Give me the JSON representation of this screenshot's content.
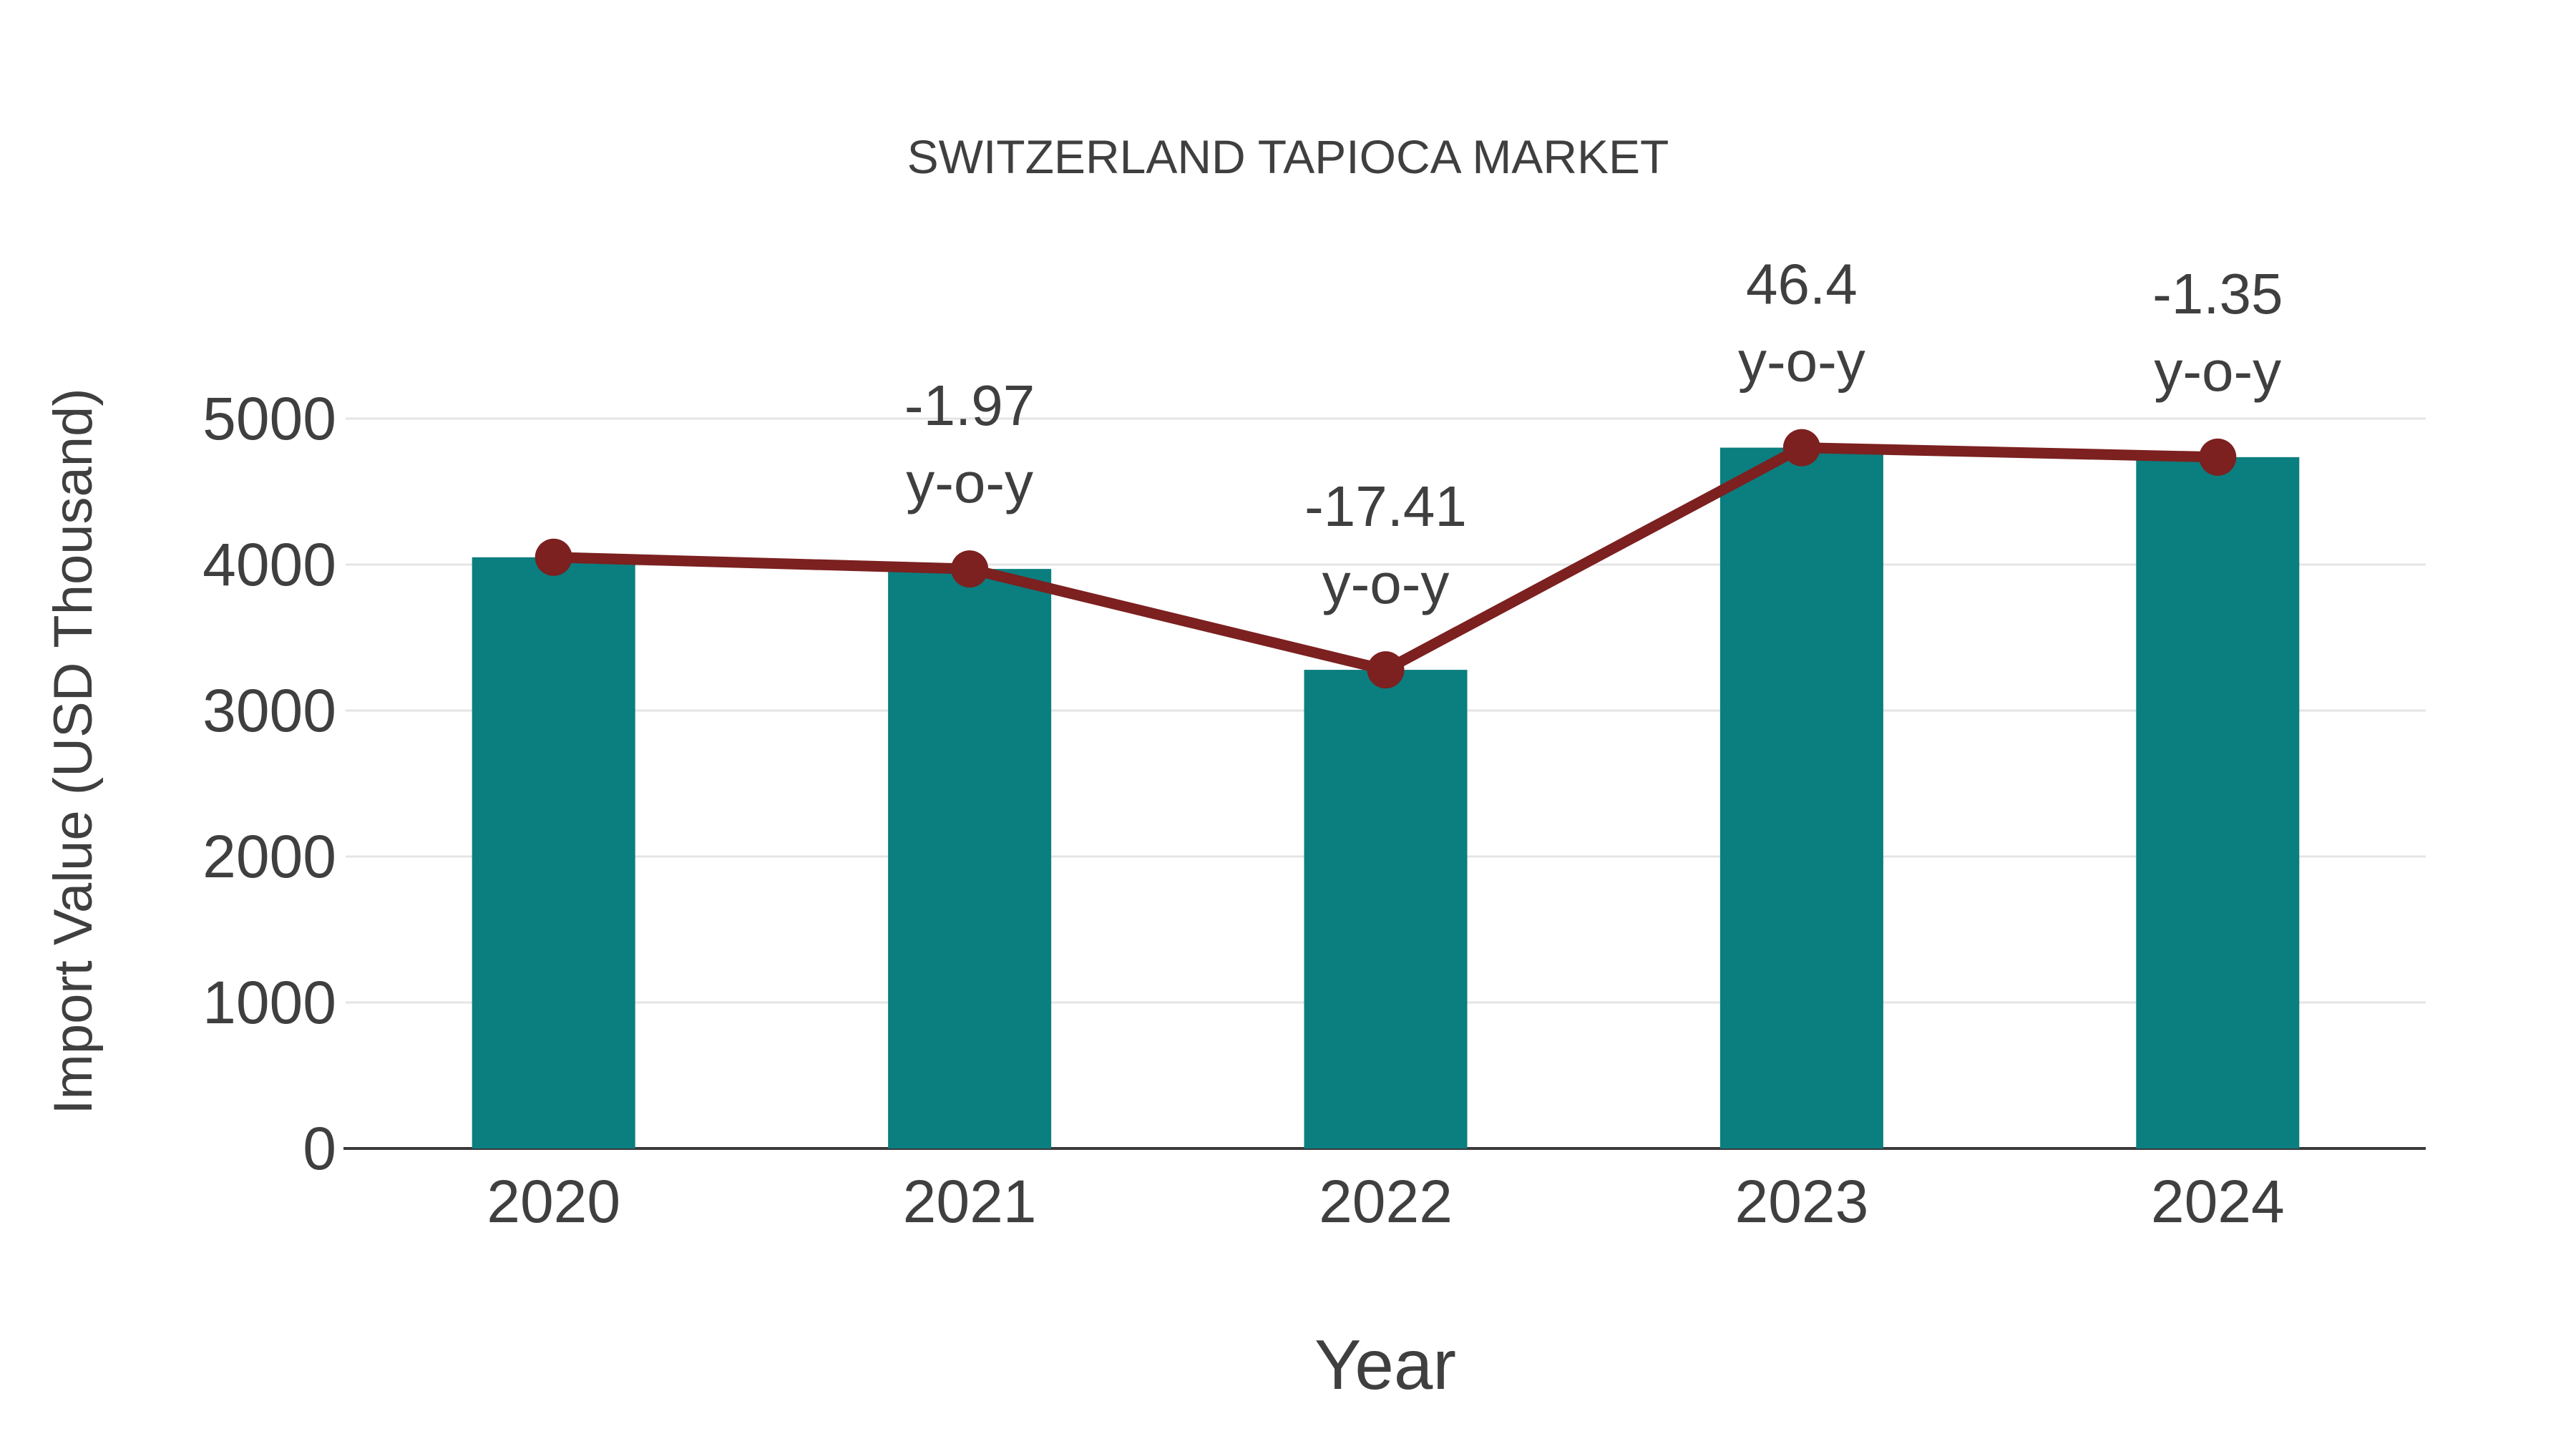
{
  "page": {
    "background": "#ffffff"
  },
  "chart_data": {
    "type": "bar",
    "subtype": "bar-with-line-overlay",
    "title": "SWITZERLAND TAPIOCA MARKET",
    "xlabel": "Year",
    "ylabel": "Import Value (USD Thousand)",
    "categories": [
      "2020",
      "2021",
      "2022",
      "2023",
      "2024"
    ],
    "series": [
      {
        "name": "import-value-bars",
        "type": "bar",
        "values": [
          4050,
          3970,
          3279,
          4801,
          4736
        ]
      },
      {
        "name": "import-value-trend-line",
        "type": "line",
        "values": [
          4050,
          3970,
          3279,
          4801,
          4736
        ]
      }
    ],
    "annotations": [
      {
        "category": "2021",
        "line1": "-1.97",
        "line2": "y-o-y"
      },
      {
        "category": "2022",
        "line1": "-17.41",
        "line2": "y-o-y"
      },
      {
        "category": "2023",
        "line1": "46.4",
        "line2": "y-o-y"
      },
      {
        "category": "2024",
        "line1": "-1.35",
        "line2": "y-o-y"
      }
    ],
    "yticks": [
      "0",
      "1000",
      "2000",
      "3000",
      "4000",
      "5000"
    ],
    "ylim": [
      0,
      5000
    ],
    "grid": "horizontal-light",
    "legend": "none"
  },
  "colors": {
    "bar": "#0b7e7f",
    "line": "#7c2020",
    "marker": "#7c2020",
    "gridline": "#e4e4e4",
    "axis_line": "#3a3a3a",
    "text": "#3f3f3f",
    "background": "#ffffff"
  }
}
